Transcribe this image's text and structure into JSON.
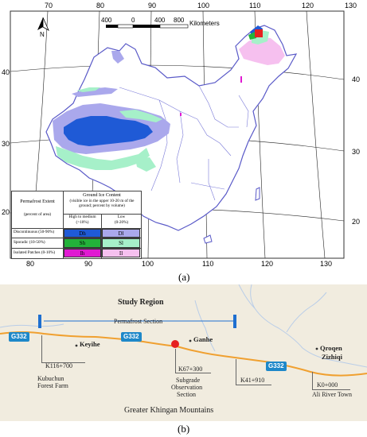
{
  "map_a": {
    "lon_labels_top": [
      "70",
      "80",
      "90",
      "100",
      "110",
      "120",
      "130"
    ],
    "lon_labels_bottom": [
      "80",
      "90",
      "100",
      "110",
      "120",
      "130"
    ],
    "lat_labels": [
      "40",
      "30",
      "20"
    ],
    "north_label": "N",
    "scale": {
      "ticks": [
        "400",
        "0",
        "400",
        "800"
      ],
      "unit": "Kilometers"
    },
    "legend": {
      "extent_title": "Permafrost Extent",
      "extent_sub": "(percent of area)",
      "ice_title": "Ground Ice Content",
      "ice_sub": "(visible ice in the upper 10-20 m of the ground; percent by volume)",
      "high_label": "High to medium",
      "high_sub": "(>10%)",
      "low_label": "Low",
      "low_sub": "(0-20%)",
      "rows": [
        {
          "label": "Discontinuous (50-90%)",
          "high_code": "Dh",
          "low_code": "Dl",
          "high_color": "#1f5ad6",
          "low_color": "#aaa8ec"
        },
        {
          "label": "Sporadic (10-50%)",
          "high_code": "Sh",
          "low_code": "Sl",
          "high_color": "#23b23a",
          "low_color": "#a6f0c9"
        },
        {
          "label": "Isolated Patches (0-10%)",
          "high_code": "Ih",
          "low_code": "Il",
          "high_color": "#e01ad2",
          "low_color": "#f6c0ef"
        }
      ]
    },
    "caption": "(a)"
  },
  "map_b": {
    "title": "Study Region",
    "section_label": "Permafrost Section",
    "highway": "G332",
    "places": {
      "keyihe": "Keyihe",
      "ganhe": "Ganhe",
      "qroqen_1": "Qroqen",
      "qroqen_2": "Zizhiqi"
    },
    "stations": {
      "k116": "K116+700",
      "k67": "K67+300",
      "k41": "K41+910",
      "k0": "K0+000"
    },
    "notes": {
      "kubuchun_1": "Kubuchun",
      "kubuchun_2": "Forest Farm",
      "subgrade_1": "Subgrade",
      "subgrade_2": "Observation",
      "subgrade_3": "Section",
      "ali": "Ali River Town"
    },
    "mountains": "Greater Khingan Mountains",
    "caption": "(b)"
  }
}
